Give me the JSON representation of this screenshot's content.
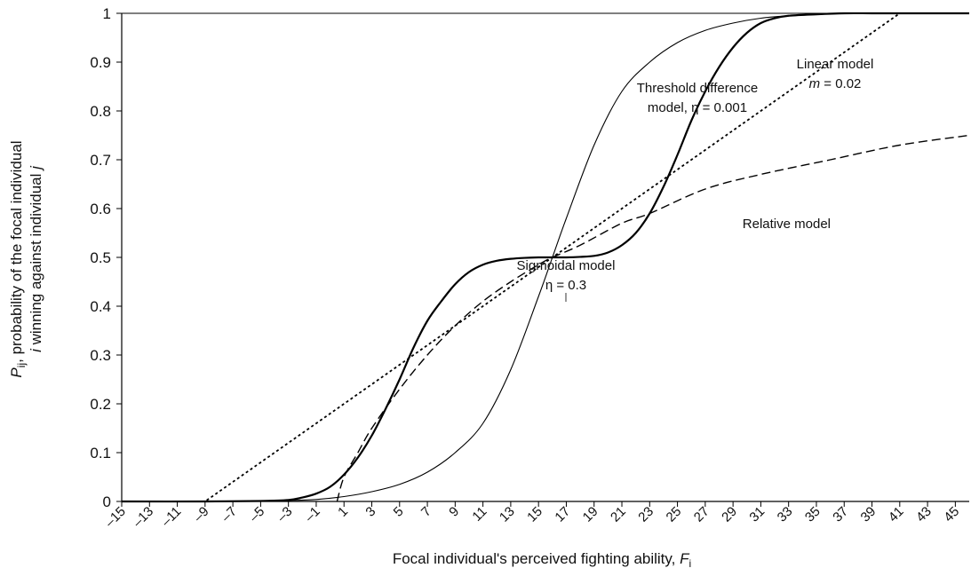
{
  "chart_data": {
    "type": "line",
    "xlabel": "Focal individual's perceived fighting ability, ",
    "xlabel_var": "F",
    "xlabel_sub": "i",
    "ylabel": {
      "line1_var": "P",
      "line1_sub": "ij",
      "line1_text": ", probability of the focal individual",
      "line2_var_i": "i",
      "line2_text": " winning against individual ",
      "line2_var_j": "j"
    },
    "xlim": [
      -15,
      46
    ],
    "ylim": [
      0,
      1
    ],
    "x_ticks": [
      -15,
      -13,
      -11,
      -9,
      -7,
      -5,
      -3,
      -1,
      1,
      3,
      5,
      7,
      9,
      11,
      13,
      15,
      17,
      19,
      21,
      23,
      25,
      27,
      29,
      31,
      33,
      35,
      37,
      39,
      41,
      43,
      45
    ],
    "y_ticks": [
      0,
      0.1,
      0.2,
      0.3,
      0.4,
      0.5,
      0.6,
      0.7,
      0.8,
      0.9,
      1
    ],
    "x_tick_labels": [
      "–15",
      "–13",
      "–11",
      "–9",
      "–7",
      "–5",
      "–3",
      "–1",
      "1",
      "3",
      "5",
      "7",
      "9",
      "11",
      "13",
      "15",
      "17",
      "19",
      "21",
      "23",
      "25",
      "27",
      "29",
      "31",
      "33",
      "35",
      "37",
      "39",
      "41",
      "43",
      "45"
    ],
    "y_tick_labels": [
      "0",
      "0.1",
      "0.2",
      "0.3",
      "0.4",
      "0.5",
      "0.6",
      "0.7",
      "0.8",
      "0.9",
      "1"
    ],
    "grid": false,
    "series": [
      {
        "name": "Sigmoidal model η = 0.3",
        "style": "thin-solid",
        "x": [
          -15,
          -9,
          -5,
          -3,
          -1,
          1,
          3,
          5,
          7,
          9,
          11,
          13,
          15,
          16,
          17,
          19,
          21,
          23,
          25,
          27,
          29,
          31,
          33,
          35,
          37,
          39,
          41,
          43,
          46
        ],
        "y": [
          0,
          0,
          0.001,
          0.002,
          0.004,
          0.01,
          0.02,
          0.035,
          0.06,
          0.1,
          0.16,
          0.27,
          0.42,
          0.5,
          0.58,
          0.73,
          0.84,
          0.9,
          0.94,
          0.965,
          0.98,
          0.99,
          0.995,
          0.998,
          1,
          1,
          1,
          1,
          1
        ]
      },
      {
        "name": "Threshold difference model, η = 0.001",
        "style": "thick-solid",
        "x": [
          -15,
          -9,
          -5,
          -3,
          -2,
          -1,
          0,
          1,
          2,
          3,
          4,
          5,
          6,
          7,
          8,
          9,
          10,
          11,
          12,
          13,
          14,
          15,
          16,
          17,
          18,
          19,
          20,
          21,
          22,
          23,
          24,
          25,
          26,
          27,
          28,
          29,
          30,
          31,
          32,
          33,
          35,
          37,
          39,
          41,
          43,
          46
        ],
        "y": [
          0,
          0,
          0.001,
          0.003,
          0.008,
          0.016,
          0.03,
          0.055,
          0.09,
          0.135,
          0.19,
          0.25,
          0.315,
          0.37,
          0.41,
          0.445,
          0.47,
          0.485,
          0.493,
          0.497,
          0.499,
          0.5,
          0.5,
          0.5,
          0.501,
          0.503,
          0.51,
          0.525,
          0.55,
          0.59,
          0.645,
          0.71,
          0.78,
          0.84,
          0.89,
          0.93,
          0.96,
          0.98,
          0.99,
          0.995,
          0.998,
          1,
          1,
          1,
          1,
          1
        ]
      },
      {
        "name": "Linear model m = 0.02",
        "style": "dotted",
        "x": [
          -15,
          -9,
          16,
          41,
          46
        ],
        "y": [
          0,
          0,
          0.5,
          1,
          1
        ]
      },
      {
        "name": "Relative model",
        "style": "dashed",
        "x": [
          0.5,
          1,
          2,
          3,
          5,
          7,
          9,
          11,
          13,
          15,
          16,
          18,
          21,
          23,
          27,
          31,
          36,
          41,
          46
        ],
        "y": [
          0,
          0.05,
          0.1,
          0.15,
          0.23,
          0.3,
          0.36,
          0.41,
          0.45,
          0.485,
          0.5,
          0.525,
          0.57,
          0.59,
          0.64,
          0.67,
          0.7,
          0.73,
          0.75
        ]
      }
    ],
    "annotations": {
      "sigmoidal_1": "Sigmoidal model",
      "sigmoidal_2": "η = 0.3",
      "threshold_1": "Threshold difference",
      "threshold_2": "model, η = 0.001",
      "linear_1": "Linear model",
      "linear_2_var": "m",
      "linear_2_text": " = 0.02",
      "relative": "Relative model"
    }
  }
}
